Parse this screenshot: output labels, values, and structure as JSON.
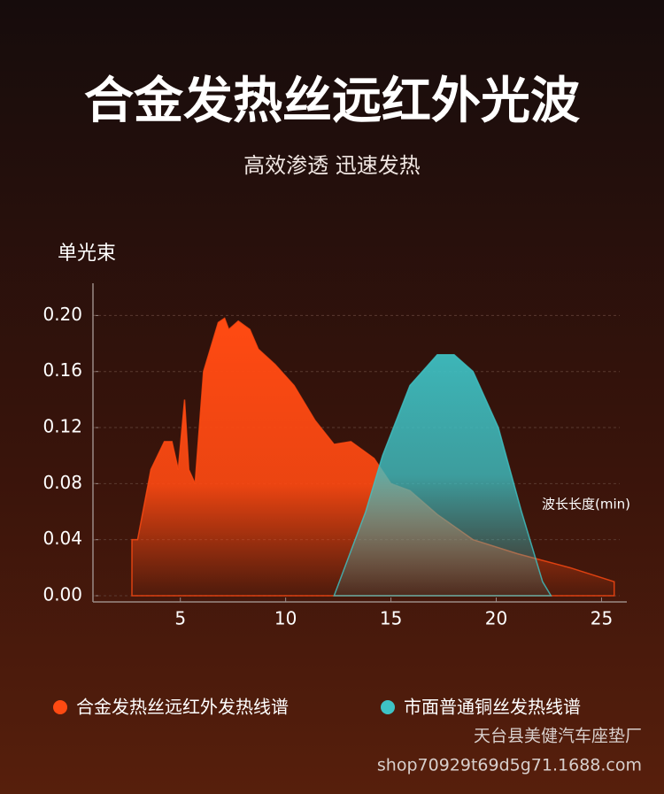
{
  "chart_data": {
    "type": "area",
    "title": "合金发热丝远红外光波",
    "subtitle": "高效渗透 迅速发热",
    "y_label": "单光束",
    "x_label": "波长长度(min)",
    "xlim": [
      0.85,
      26.2
    ],
    "ylim": [
      0,
      0.223
    ],
    "xticks": [
      5,
      10,
      15,
      20,
      25
    ],
    "yticks": [
      {
        "value": 0,
        "label": "0.00"
      },
      {
        "value": 0.04,
        "label": "0.04"
      },
      {
        "value": 0.08,
        "label": "0.08"
      },
      {
        "value": 0.12,
        "label": "0.12"
      },
      {
        "value": 0.16,
        "label": "0.16"
      },
      {
        "value": 0.2,
        "label": "0.20"
      }
    ],
    "grid": true,
    "series": [
      {
        "name": "合金发热丝远红外发热线谱",
        "color": "#ff4a12",
        "x": [
          2.7,
          2.97,
          3.6,
          4.24,
          4.6,
          4.9,
          5.2,
          5.4,
          5.7,
          6.1,
          6.8,
          7.1,
          7.3,
          7.75,
          8.3,
          8.7,
          9.5,
          10.4,
          11.4,
          12.3,
          13.1,
          14.2,
          15.0,
          15.9,
          17.2,
          18.9,
          21.0,
          23.5,
          25.6
        ],
        "values": [
          0.04,
          0.04,
          0.09,
          0.11,
          0.11,
          0.09,
          0.14,
          0.09,
          0.08,
          0.16,
          0.195,
          0.198,
          0.19,
          0.196,
          0.19,
          0.176,
          0.165,
          0.15,
          0.125,
          0.108,
          0.11,
          0.098,
          0.08,
          0.075,
          0.058,
          0.04,
          0.03,
          0.02,
          0.01
        ]
      },
      {
        "name": "市面普通铜丝发热线谱",
        "color": "#3ec3c6",
        "x": [
          12.3,
          13.8,
          14.6,
          15.9,
          17.2,
          18.0,
          18.9,
          20.1,
          21.2,
          22.2,
          22.6
        ],
        "values": [
          0,
          0.06,
          0.1,
          0.15,
          0.172,
          0.172,
          0.16,
          0.12,
          0.06,
          0.01,
          0
        ]
      }
    ]
  },
  "watermark": [
    "天台县美健汽车座垫厂",
    "shop70929t69d5g71.1688.com"
  ]
}
